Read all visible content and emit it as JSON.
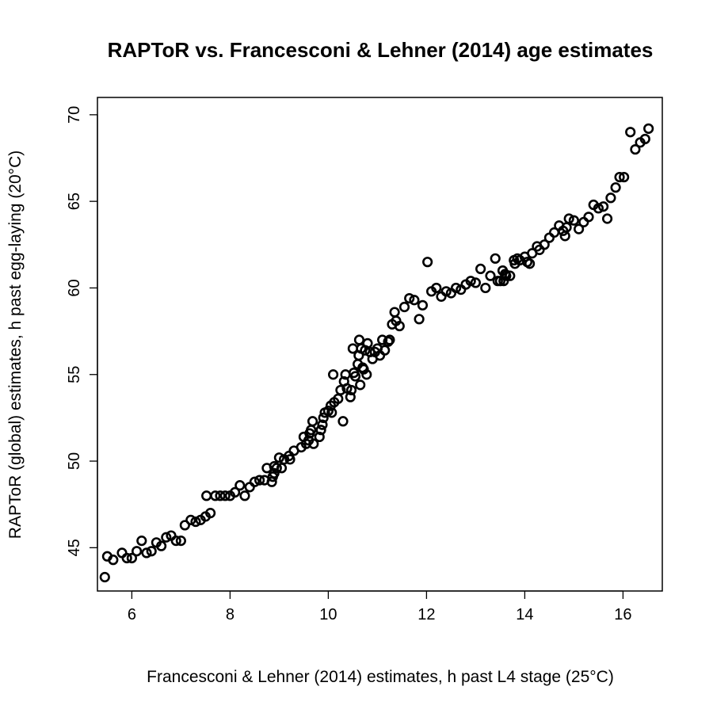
{
  "chart_data": {
    "type": "scatter",
    "title": "RAPToR vs. Francesconi & Lehner (2014) age estimates",
    "xlabel": "Francesconi & Lehner (2014) estimates, h past L4 stage (25°C)",
    "ylabel": "RAPToR (global) estimates, h past egg-laying (20°C)",
    "xlim": [
      5.3,
      16.8
    ],
    "ylim": [
      42.5,
      71
    ],
    "xticks": [
      6,
      8,
      10,
      12,
      14,
      16
    ],
    "yticks": [
      45,
      50,
      55,
      60,
      65,
      70
    ],
    "grid": false,
    "series": [
      {
        "marker": "open-circle",
        "color": "#000000",
        "points": [
          [
            5.45,
            43.3
          ],
          [
            5.5,
            44.5
          ],
          [
            5.62,
            44.3
          ],
          [
            5.8,
            44.7
          ],
          [
            5.9,
            44.4
          ],
          [
            6.0,
            44.4
          ],
          [
            6.1,
            44.8
          ],
          [
            6.2,
            45.4
          ],
          [
            6.3,
            44.7
          ],
          [
            6.4,
            44.8
          ],
          [
            6.5,
            45.3
          ],
          [
            6.6,
            45.1
          ],
          [
            6.7,
            45.6
          ],
          [
            6.8,
            45.7
          ],
          [
            6.9,
            45.4
          ],
          [
            7.0,
            45.4
          ],
          [
            7.08,
            46.3
          ],
          [
            7.2,
            46.6
          ],
          [
            7.3,
            46.5
          ],
          [
            7.4,
            46.6
          ],
          [
            7.5,
            46.8
          ],
          [
            7.52,
            48.0
          ],
          [
            7.6,
            47.0
          ],
          [
            7.7,
            48.0
          ],
          [
            7.8,
            48.0
          ],
          [
            7.9,
            48.0
          ],
          [
            8.0,
            48.0
          ],
          [
            8.1,
            48.2
          ],
          [
            8.2,
            48.6
          ],
          [
            8.3,
            48.0
          ],
          [
            8.4,
            48.5
          ],
          [
            8.5,
            48.8
          ],
          [
            8.6,
            48.9
          ],
          [
            8.7,
            48.9
          ],
          [
            8.75,
            49.6
          ],
          [
            8.85,
            48.8
          ],
          [
            8.87,
            49.1
          ],
          [
            8.9,
            49.3
          ],
          [
            8.9,
            49.7
          ],
          [
            8.95,
            49.6
          ],
          [
            9.0,
            50.2
          ],
          [
            9.05,
            49.6
          ],
          [
            9.1,
            50.1
          ],
          [
            9.2,
            50.3
          ],
          [
            9.22,
            50.1
          ],
          [
            9.3,
            50.6
          ],
          [
            9.45,
            50.8
          ],
          [
            9.5,
            51.4
          ],
          [
            9.55,
            51.0
          ],
          [
            9.6,
            51.2
          ],
          [
            9.62,
            51.6
          ],
          [
            9.65,
            51.8
          ],
          [
            9.68,
            52.3
          ],
          [
            9.7,
            51.0
          ],
          [
            9.82,
            51.4
          ],
          [
            9.85,
            51.8
          ],
          [
            9.88,
            52.1
          ],
          [
            9.9,
            52.5
          ],
          [
            9.93,
            52.8
          ],
          [
            10.0,
            52.9
          ],
          [
            10.05,
            53.2
          ],
          [
            10.07,
            52.8
          ],
          [
            10.1,
            55.0
          ],
          [
            10.12,
            53.4
          ],
          [
            10.2,
            53.6
          ],
          [
            10.25,
            54.1
          ],
          [
            10.3,
            52.3
          ],
          [
            10.32,
            54.6
          ],
          [
            10.35,
            55.0
          ],
          [
            10.38,
            54.2
          ],
          [
            10.45,
            53.7
          ],
          [
            10.47,
            54.1
          ],
          [
            10.5,
            56.5
          ],
          [
            10.52,
            55.1
          ],
          [
            10.55,
            54.9
          ],
          [
            10.6,
            55.6
          ],
          [
            10.62,
            56.1
          ],
          [
            10.63,
            57.0
          ],
          [
            10.65,
            54.4
          ],
          [
            10.67,
            56.5
          ],
          [
            10.7,
            55.4
          ],
          [
            10.72,
            55.3
          ],
          [
            10.75,
            56.4
          ],
          [
            10.78,
            55.0
          ],
          [
            10.8,
            56.8
          ],
          [
            10.85,
            56.3
          ],
          [
            10.9,
            55.9
          ],
          [
            10.95,
            56.3
          ],
          [
            11.0,
            56.5
          ],
          [
            11.05,
            56.1
          ],
          [
            11.1,
            57.0
          ],
          [
            11.15,
            56.4
          ],
          [
            11.22,
            56.9
          ],
          [
            11.25,
            57.0
          ],
          [
            11.3,
            57.9
          ],
          [
            11.35,
            58.6
          ],
          [
            11.38,
            58.1
          ],
          [
            11.45,
            57.8
          ],
          [
            11.55,
            58.9
          ],
          [
            11.65,
            59.4
          ],
          [
            11.75,
            59.3
          ],
          [
            11.85,
            58.2
          ],
          [
            11.92,
            59.0
          ],
          [
            12.02,
            61.5
          ],
          [
            12.1,
            59.8
          ],
          [
            12.2,
            60.0
          ],
          [
            12.3,
            59.5
          ],
          [
            12.4,
            59.8
          ],
          [
            12.5,
            59.7
          ],
          [
            12.6,
            60.0
          ],
          [
            12.7,
            59.9
          ],
          [
            12.8,
            60.2
          ],
          [
            12.9,
            60.4
          ],
          [
            13.0,
            60.3
          ],
          [
            13.1,
            61.1
          ],
          [
            13.2,
            60.0
          ],
          [
            13.3,
            60.7
          ],
          [
            13.4,
            61.7
          ],
          [
            13.45,
            60.4
          ],
          [
            13.5,
            60.4
          ],
          [
            13.55,
            61.0
          ],
          [
            13.57,
            60.4
          ],
          [
            13.6,
            60.8
          ],
          [
            13.62,
            60.7
          ],
          [
            13.7,
            60.7
          ],
          [
            13.78,
            61.6
          ],
          [
            13.8,
            61.4
          ],
          [
            13.85,
            61.7
          ],
          [
            13.9,
            61.6
          ],
          [
            14.0,
            61.8
          ],
          [
            14.05,
            61.5
          ],
          [
            14.1,
            61.4
          ],
          [
            14.15,
            62.0
          ],
          [
            14.25,
            62.4
          ],
          [
            14.3,
            62.2
          ],
          [
            14.4,
            62.5
          ],
          [
            14.5,
            62.9
          ],
          [
            14.6,
            63.2
          ],
          [
            14.7,
            63.6
          ],
          [
            14.78,
            63.3
          ],
          [
            14.82,
            63.0
          ],
          [
            14.85,
            63.5
          ],
          [
            14.9,
            64.0
          ],
          [
            15.0,
            63.9
          ],
          [
            15.1,
            63.4
          ],
          [
            15.2,
            63.8
          ],
          [
            15.3,
            64.1
          ],
          [
            15.4,
            64.8
          ],
          [
            15.5,
            64.6
          ],
          [
            15.6,
            64.7
          ],
          [
            15.68,
            64.0
          ],
          [
            15.75,
            65.2
          ],
          [
            15.85,
            65.8
          ],
          [
            15.93,
            66.4
          ],
          [
            16.02,
            66.4
          ],
          [
            16.15,
            69.0
          ],
          [
            16.25,
            68.0
          ],
          [
            16.35,
            68.4
          ],
          [
            16.45,
            68.6
          ],
          [
            16.52,
            69.2
          ]
        ]
      }
    ]
  }
}
